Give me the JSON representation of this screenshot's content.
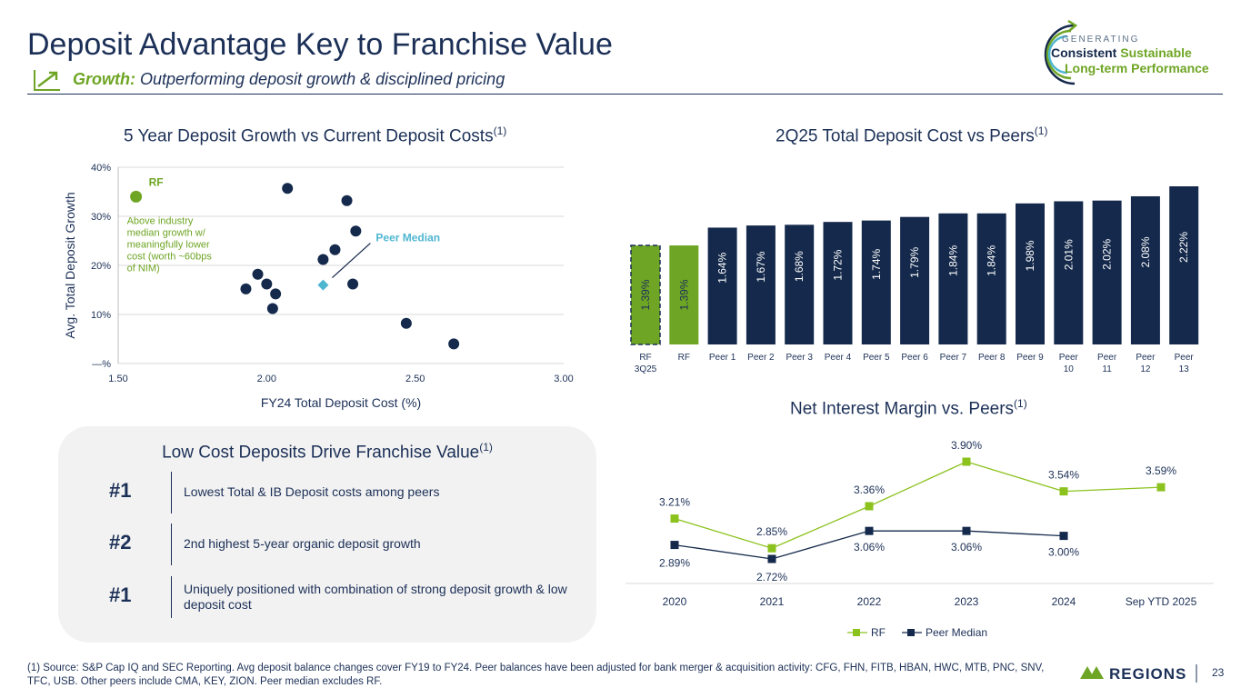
{
  "header": {
    "title": "Deposit Advantage Key to Franchise Value",
    "subtitle_lead": "Growth:",
    "subtitle_rest": " Outperforming deposit growth & disciplined pricing"
  },
  "badge": {
    "line1": "GENERATING",
    "line2a": "Consistent",
    "line2b": "Sustainable",
    "line3": "Long-term Performance"
  },
  "colors": {
    "navy": "#14294b",
    "green": "#6ea524",
    "teal": "#4fb6d0",
    "grey_panel": "#f2f2f2"
  },
  "chart_data": [
    {
      "type": "scatter",
      "title": "5 Year Deposit Growth vs Current Deposit Costs",
      "title_sup": "(1)",
      "xlabel": "FY24 Total Deposit Cost (%)",
      "ylabel": "Avg. Total Deposit Growth",
      "xlim": [
        1.5,
        3.0
      ],
      "ylim": [
        0,
        40
      ],
      "x_ticks": [
        1.5,
        2.0,
        2.5,
        3.0
      ],
      "x_tick_labels": [
        "1.50",
        "2.00",
        "2.50",
        "3.00"
      ],
      "y_ticks": [
        0,
        10,
        20,
        30,
        40
      ],
      "y_tick_labels": [
        "—%",
        "10%",
        "20%",
        "30%",
        "40%"
      ],
      "grid": true,
      "rf_point": {
        "label": "RF",
        "x": 1.56,
        "y": 34
      },
      "rf_note": [
        "Above industry",
        "median growth w/",
        "meaningfully lower",
        "cost (worth ~60bps",
        "of NIM)"
      ],
      "median_point": {
        "label": "Peer Median",
        "x": 2.19,
        "y": 16
      },
      "peers": [
        {
          "x": 1.93,
          "y": 15.2
        },
        {
          "x": 1.97,
          "y": 18.2
        },
        {
          "x": 2.0,
          "y": 16.2
        },
        {
          "x": 2.03,
          "y": 14.2
        },
        {
          "x": 2.02,
          "y": 11.2
        },
        {
          "x": 2.07,
          "y": 35.7
        },
        {
          "x": 2.19,
          "y": 21.2
        },
        {
          "x": 2.23,
          "y": 23.2
        },
        {
          "x": 2.27,
          "y": 33.2
        },
        {
          "x": 2.3,
          "y": 27.0
        },
        {
          "x": 2.29,
          "y": 16.2
        },
        {
          "x": 2.47,
          "y": 8.2
        },
        {
          "x": 2.63,
          "y": 4.0
        }
      ]
    },
    {
      "type": "bar",
      "title": "2Q25 Total Deposit Cost vs Peers",
      "title_sup": "(1)",
      "categories": [
        "RF 3Q25",
        "RF",
        "Peer 1",
        "Peer 2",
        "Peer 3",
        "Peer 4",
        "Peer 5",
        "Peer 6",
        "Peer 7",
        "Peer 8",
        "Peer 9",
        "Peer 10",
        "Peer 11",
        "Peer 12",
        "Peer 13"
      ],
      "category_lines": [
        [
          "RF",
          "3Q25"
        ],
        [
          "RF"
        ],
        [
          "Peer 1"
        ],
        [
          "Peer 2"
        ],
        [
          "Peer 3"
        ],
        [
          "Peer 4"
        ],
        [
          "Peer 5"
        ],
        [
          "Peer 6"
        ],
        [
          "Peer 7"
        ],
        [
          "Peer 8"
        ],
        [
          "Peer 9"
        ],
        [
          "Peer",
          "10"
        ],
        [
          "Peer",
          "11"
        ],
        [
          "Peer",
          "12"
        ],
        [
          "Peer",
          "13"
        ]
      ],
      "values": [
        1.39,
        1.39,
        1.64,
        1.67,
        1.68,
        1.72,
        1.74,
        1.79,
        1.84,
        1.84,
        1.98,
        2.01,
        2.02,
        2.08,
        2.22
      ],
      "value_labels": [
        "1.39%",
        "1.39%",
        "1.64%",
        "1.67%",
        "1.68%",
        "1.72%",
        "1.74%",
        "1.79%",
        "1.84%",
        "1.84%",
        "1.98%",
        "2.01%",
        "2.02%",
        "2.08%",
        "2.22%"
      ],
      "styles": [
        "dashed-green",
        "green",
        "navy",
        "navy",
        "navy",
        "navy",
        "navy",
        "navy",
        "navy",
        "navy",
        "navy",
        "navy",
        "navy",
        "navy",
        "navy"
      ]
    },
    {
      "type": "line",
      "title": "Net Interest Margin vs. Peers",
      "title_sup": "(1)",
      "categories": [
        "2020",
        "2021",
        "2022",
        "2023",
        "2024",
        "Sep YTD 2025"
      ],
      "series": [
        {
          "name": "RF",
          "values": [
            3.21,
            2.85,
            3.36,
            3.9,
            3.54,
            3.59
          ],
          "labels": [
            "3.21%",
            "2.85%",
            "3.36%",
            "3.90%",
            "3.54%",
            "3.59%"
          ],
          "color": "#8cc21e"
        },
        {
          "name": "Peer Median",
          "values": [
            2.89,
            2.72,
            3.06,
            3.06,
            3.0,
            null
          ],
          "labels": [
            "2.89%",
            "2.72%",
            "3.06%",
            "3.06%",
            "3.00%",
            null
          ],
          "color": "#14294b"
        }
      ],
      "legend": "bottom-center"
    }
  ],
  "panel": {
    "title": "Low Cost Deposits Drive Franchise Value",
    "title_sup": "(1)",
    "rows": [
      {
        "rank": "#1",
        "text": "Lowest Total & IB Deposit costs among peers"
      },
      {
        "rank": "#2",
        "text": "2nd highest 5-year organic deposit growth"
      },
      {
        "rank": "#1",
        "text": "Uniquely positioned with combination of strong deposit growth & low deposit cost"
      }
    ]
  },
  "footnote": "(1) Source: S&P Cap IQ and SEC Reporting. Avg deposit balance changes cover FY19 to FY24. Peer balances have been adjusted for bank merger & acquisition activity: CFG, FHN, FITB, HBAN, HWC, MTB, PNC, SNV, TFC, USB.  Other peers include CMA, KEY, ZION. Peer median excludes RF.",
  "logo": {
    "name": "Regions"
  },
  "page_number": "23"
}
